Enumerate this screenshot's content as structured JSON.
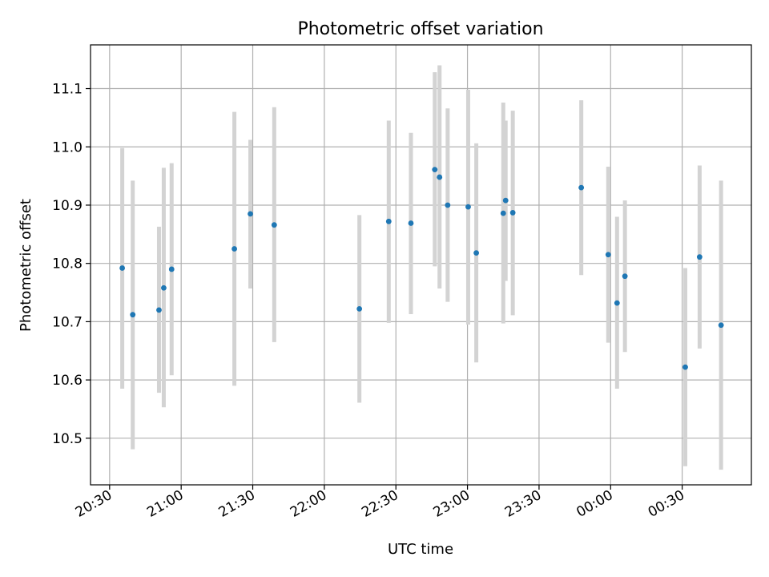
{
  "chart_data": {
    "type": "scatter",
    "title": "Photometric offset variation",
    "xlabel": "UTC time",
    "ylabel": "Photometric offset",
    "grid": true,
    "xlim": [
      "20:22",
      "00:59"
    ],
    "ylim": [
      10.42,
      11.175
    ],
    "x_ticks": [
      "20:30",
      "21:00",
      "21:30",
      "22:00",
      "22:30",
      "23:00",
      "23:30",
      "00:00",
      "00:30"
    ],
    "y_ticks": [
      "10.5",
      "10.6",
      "10.7",
      "10.8",
      "10.9",
      "11.0",
      "11.1"
    ],
    "colors": {
      "point": "#1f77b4",
      "errorbar": "#d3d3d3",
      "grid": "#b0b0b0"
    },
    "points": [
      {
        "x": "20:35.3",
        "y": 10.792,
        "ymin": 10.585,
        "ymax": 10.998
      },
      {
        "x": "20:39.7",
        "y": 10.712,
        "ymin": 10.481,
        "ymax": 10.942
      },
      {
        "x": "20:50.7",
        "y": 10.72,
        "ymin": 10.578,
        "ymax": 10.863
      },
      {
        "x": "20:52.7",
        "y": 10.758,
        "ymin": 10.553,
        "ymax": 10.964
      },
      {
        "x": "20:56.0",
        "y": 10.79,
        "ymin": 10.608,
        "ymax": 10.972
      },
      {
        "x": "21:22.3",
        "y": 10.825,
        "ymin": 10.59,
        "ymax": 11.06
      },
      {
        "x": "21:29.0",
        "y": 10.885,
        "ymin": 10.757,
        "ymax": 11.012
      },
      {
        "x": "21:39.0",
        "y": 10.866,
        "ymin": 10.665,
        "ymax": 11.068
      },
      {
        "x": "22:14.7",
        "y": 10.722,
        "ymin": 10.561,
        "ymax": 10.883
      },
      {
        "x": "22:27.0",
        "y": 10.872,
        "ymin": 10.698,
        "ymax": 11.045
      },
      {
        "x": "22:36.3",
        "y": 10.869,
        "ymin": 10.713,
        "ymax": 11.024
      },
      {
        "x": "22:46.3",
        "y": 10.961,
        "ymin": 10.795,
        "ymax": 11.128
      },
      {
        "x": "22:48.3",
        "y": 10.948,
        "ymin": 10.757,
        "ymax": 11.14
      },
      {
        "x": "22:51.7",
        "y": 10.9,
        "ymin": 10.734,
        "ymax": 11.066
      },
      {
        "x": "23:00.3",
        "y": 10.897,
        "ymin": 10.695,
        "ymax": 11.098
      },
      {
        "x": "23:03.7",
        "y": 10.818,
        "ymin": 10.63,
        "ymax": 11.006
      },
      {
        "x": "23:15.0",
        "y": 10.886,
        "ymin": 10.697,
        "ymax": 11.076
      },
      {
        "x": "23:16.0",
        "y": 10.908,
        "ymin": 10.77,
        "ymax": 11.045
      },
      {
        "x": "23:19.0",
        "y": 10.887,
        "ymin": 10.711,
        "ymax": 11.062
      },
      {
        "x": "23:47.7",
        "y": 10.93,
        "ymin": 10.78,
        "ymax": 11.08
      },
      {
        "x": "23:59.0",
        "y": 10.815,
        "ymin": 10.664,
        "ymax": 10.966
      },
      {
        "x": "00:02.7",
        "y": 10.732,
        "ymin": 10.585,
        "ymax": 10.88
      },
      {
        "x": "00:06.0",
        "y": 10.778,
        "ymin": 10.648,
        "ymax": 10.908
      },
      {
        "x": "00:31.3",
        "y": 10.622,
        "ymin": 10.452,
        "ymax": 10.792
      },
      {
        "x": "00:37.3",
        "y": 10.811,
        "ymin": 10.654,
        "ymax": 10.968
      },
      {
        "x": "00:46.3",
        "y": 10.694,
        "ymin": 10.446,
        "ymax": 10.942
      }
    ]
  }
}
